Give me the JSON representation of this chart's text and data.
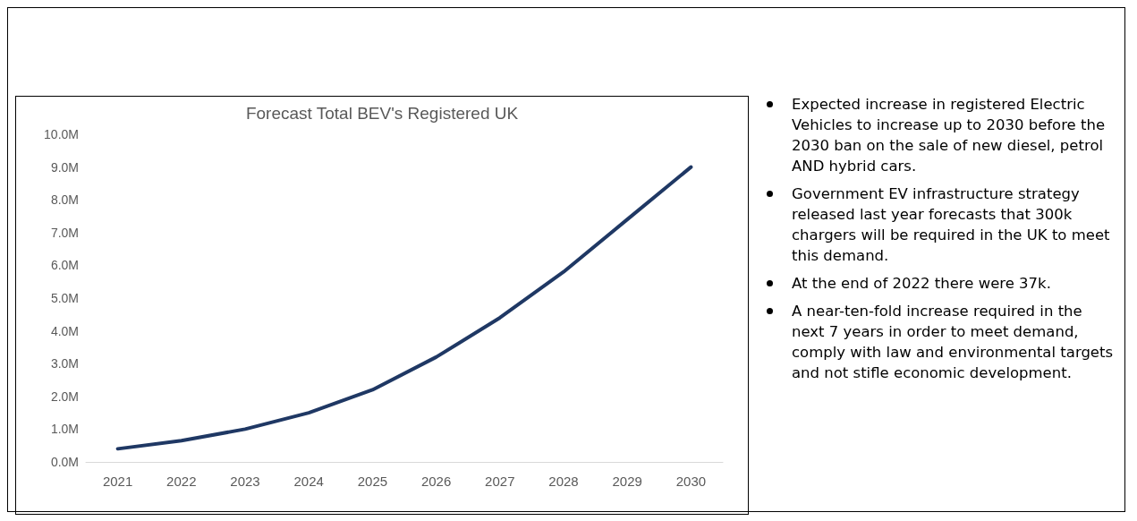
{
  "chart_data": {
    "type": "line",
    "title": "Forecast Total BEV's Registered UK",
    "categories": [
      "2021",
      "2022",
      "2023",
      "2024",
      "2025",
      "2026",
      "2027",
      "2028",
      "2029",
      "2030"
    ],
    "series": [
      {
        "color": "#1f3864",
        "values": [
          0.4,
          0.65,
          1.0,
          1.5,
          2.2,
          3.2,
          4.4,
          5.8,
          7.4,
          9.0
        ]
      }
    ],
    "ylim": [
      0,
      10
    ],
    "yticks": [
      {
        "value": 0,
        "label": "0.0M"
      },
      {
        "value": 1,
        "label": "1.0M"
      },
      {
        "value": 2,
        "label": "2.0M"
      },
      {
        "value": 3,
        "label": "3.0M"
      },
      {
        "value": 4,
        "label": "4.0M"
      },
      {
        "value": 5,
        "label": "5.0M"
      },
      {
        "value": 6,
        "label": "6.0M"
      },
      {
        "value": 7,
        "label": "7.0M"
      },
      {
        "value": 8,
        "label": "8.0M"
      },
      {
        "value": 9,
        "label": "9.0M"
      },
      {
        "value": 10,
        "label": "10.0M"
      }
    ],
    "grid": false,
    "marker": "none",
    "line_style": "solid",
    "annotations": [
      "Expected increase in registered Electric Vehicles to increase up to 2030 before the 2030 ban on the sale of new diesel, petrol AND hybrid cars.",
      "Government EV infrastructure strategy released last year forecasts that 300k chargers will be required in the UK to meet this demand.",
      "At the end of 2022 there were 37k.",
      "A near-ten-fold increase required in the next 7 years in order to meet demand, comply with law and environmental targets and not stifle economic development."
    ]
  }
}
